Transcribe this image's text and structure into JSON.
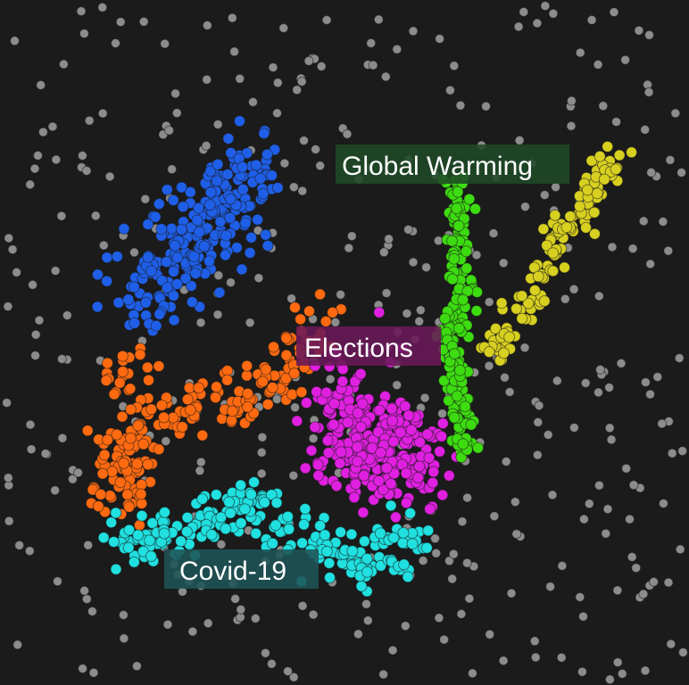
{
  "chart_data": {
    "type": "scatter",
    "title": "",
    "xlabel": "",
    "ylabel": "",
    "grid": false,
    "legend": "none",
    "background_color": "#1b1b1b",
    "background_points": {
      "color": "#8c8c8c",
      "count": 420
    },
    "clusters": [
      {
        "name": "",
        "color": "#1f5fe8",
        "count": 240,
        "path": [
          [
            0.37,
            0.76
          ],
          [
            0.32,
            0.69
          ],
          [
            0.26,
            0.64
          ],
          [
            0.2,
            0.55
          ]
        ],
        "spread": 0.032
      },
      {
        "name": "",
        "color": "#ff6a10",
        "count": 230,
        "path": [
          [
            0.47,
            0.53
          ],
          [
            0.41,
            0.45
          ],
          [
            0.33,
            0.41
          ],
          [
            0.24,
            0.39
          ],
          [
            0.2,
            0.36
          ],
          [
            0.17,
            0.27
          ],
          [
            0.19,
            0.49
          ]
        ],
        "spread": 0.02
      },
      {
        "name": "Elections",
        "label": "Elections",
        "label_color": "#6a1858",
        "color": "#e020e0",
        "count": 270,
        "path": [
          [
            0.5,
            0.42
          ],
          [
            0.53,
            0.36
          ],
          [
            0.56,
            0.3
          ],
          [
            0.6,
            0.36
          ]
        ],
        "spread": 0.035
      },
      {
        "name": "Global Warming",
        "label": "Global Warming",
        "label_color": "#1f4a27",
        "color": "#3ddc10",
        "count": 190,
        "path": [
          [
            0.66,
            0.74
          ],
          [
            0.67,
            0.6
          ],
          [
            0.66,
            0.48
          ],
          [
            0.67,
            0.34
          ]
        ],
        "spread": 0.01
      },
      {
        "name": "",
        "color": "#d8d020",
        "count": 130,
        "path": [
          [
            0.89,
            0.77
          ],
          [
            0.82,
            0.66
          ],
          [
            0.76,
            0.55
          ],
          [
            0.72,
            0.48
          ]
        ],
        "spread": 0.013
      },
      {
        "name": "Covid-19",
        "label": "Covid-19",
        "label_color": "#1f5458",
        "color": "#20e0e0",
        "count": 230,
        "path": [
          [
            0.17,
            0.21
          ],
          [
            0.28,
            0.22
          ],
          [
            0.36,
            0.27
          ],
          [
            0.45,
            0.21
          ],
          [
            0.52,
            0.17
          ],
          [
            0.61,
            0.22
          ]
        ],
        "spread": 0.02
      }
    ]
  }
}
